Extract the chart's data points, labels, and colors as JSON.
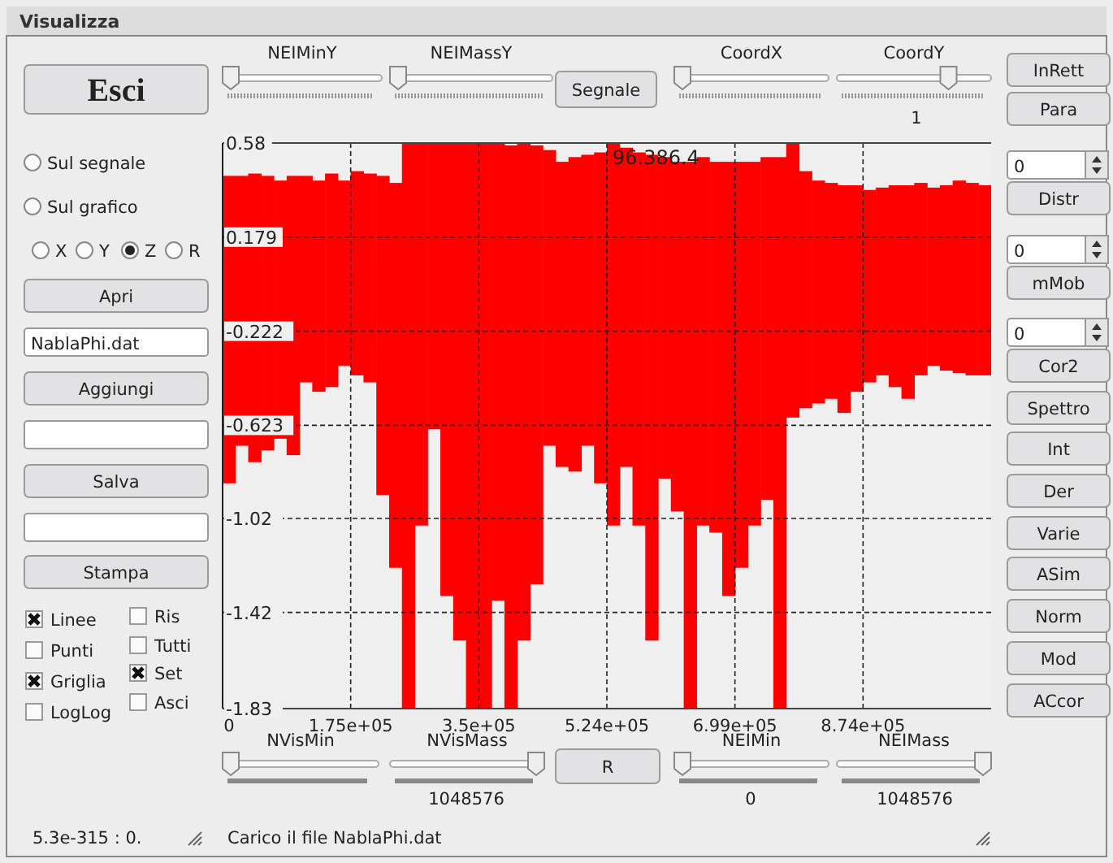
{
  "chart_data": {
    "type": "bar",
    "title": "Visualizza",
    "x": [
      8738,
      26214,
      43690,
      61166,
      78642,
      96118,
      113594,
      131070,
      148546,
      166022,
      183498,
      200974,
      218450,
      235926,
      253402,
      270878,
      288354,
      305830,
      323306,
      340782,
      358258,
      375734,
      393210,
      410686,
      428162,
      445638,
      463114,
      480590,
      498066,
      515542,
      533018,
      550494,
      567970,
      585446,
      602922,
      620398,
      637874,
      655350,
      672826,
      690302,
      707778,
      725254,
      742730,
      760206,
      777682,
      795158,
      812634,
      830110,
      847586,
      865062,
      882538,
      900014,
      917490,
      934966,
      952442,
      969918,
      987394,
      1004870,
      1022346,
      1039822
    ],
    "base": [
      -0.87,
      -0.71,
      -0.78,
      -0.73,
      -0.68,
      -0.75,
      -0.44,
      -0.48,
      -0.46,
      -0.37,
      -0.41,
      -0.44,
      -0.92,
      -1.23,
      -1.83,
      -1.05,
      -0.64,
      -1.35,
      -1.54,
      -1.83,
      -1.83,
      -1.37,
      -1.83,
      -1.54,
      -1.3,
      -0.71,
      -0.8,
      -0.82,
      -0.71,
      -0.87,
      -1.05,
      -0.8,
      -1.05,
      -1.54,
      -0.85,
      -0.99,
      -1.83,
      -1.05,
      -1.08,
      -1.35,
      -1.23,
      -1.05,
      -0.94,
      -1.83,
      -0.59,
      -0.55,
      -0.53,
      -0.51,
      -0.57,
      -0.48,
      -0.44,
      -0.41,
      -0.46,
      -0.51,
      -0.41,
      -0.37,
      -0.39,
      -0.4,
      -0.41,
      -0.41
    ],
    "values": [
      1.31,
      1.15,
      1.23,
      1.17,
      1.1,
      1.19,
      0.88,
      0.9,
      0.91,
      0.79,
      0.87,
      0.89,
      1.36,
      1.64,
      2.41,
      1.63,
      1.22,
      1.93,
      2.12,
      2.41,
      2.41,
      1.95,
      2.4,
      2.12,
      1.87,
      1.26,
      1.3,
      1.34,
      1.24,
      1.41,
      1.63,
      1.36,
      1.59,
      2.07,
      1.37,
      1.49,
      2.33,
      1.57,
      1.58,
      1.85,
      1.73,
      1.55,
      1.46,
      2.35,
      1.17,
      1.01,
      0.95,
      0.92,
      0.97,
      0.88,
      0.82,
      0.8,
      0.86,
      0.91,
      0.82,
      0.76,
      0.79,
      0.82,
      0.82,
      0.81
    ],
    "color": "#ff0000",
    "xlim": [
      0,
      1048576
    ],
    "xticks": [
      0,
      {
        "value": 174763,
        "label": "1.75e+05"
      },
      {
        "value": 349525,
        "label": "3.5e+05"
      },
      {
        "value": 524288,
        "label": "5.24e+05"
      },
      {
        "value": 699051,
        "label": "6.99e+05"
      },
      {
        "value": 873813,
        "label": "8.74e+05"
      }
    ],
    "ylim": [
      -1.83,
      0.58
    ],
    "yticks": [
      0.58,
      0.179,
      -0.222,
      -0.623,
      -1.02,
      -1.42,
      -1.83
    ],
    "grid": true,
    "annotations": [
      "Esci",
      "NEIMinY",
      "NEIMassY",
      "Segnale",
      "CoordX",
      "CoordY",
      "1",
      "InRett",
      "Para",
      "Sul segnale",
      "Sul grafico",
      "X",
      "Y",
      "Z",
      "R",
      "Apri",
      "NablaPhi.dat",
      "Aggiungi",
      "Salva",
      "Stampa",
      "Linee",
      "Punti",
      "Griglia",
      "LogLog",
      "Ris",
      "Tutti",
      "Set",
      "Asci",
      "5.3e-315 : 0.",
      "0",
      "Distr",
      "0",
      "mMob",
      "0",
      "Cor2",
      "Spettro",
      "Int",
      "Der",
      "Varie",
      "ASim",
      "Norm",
      "Mod",
      "ACcor",
      "NVisMin",
      "NVisMass",
      "1048576",
      "R",
      "NEIMin",
      "0",
      "NEIMass",
      "1048576",
      "Carico il file NablaPhi.dat",
      "96.386.4"
    ]
  }
}
